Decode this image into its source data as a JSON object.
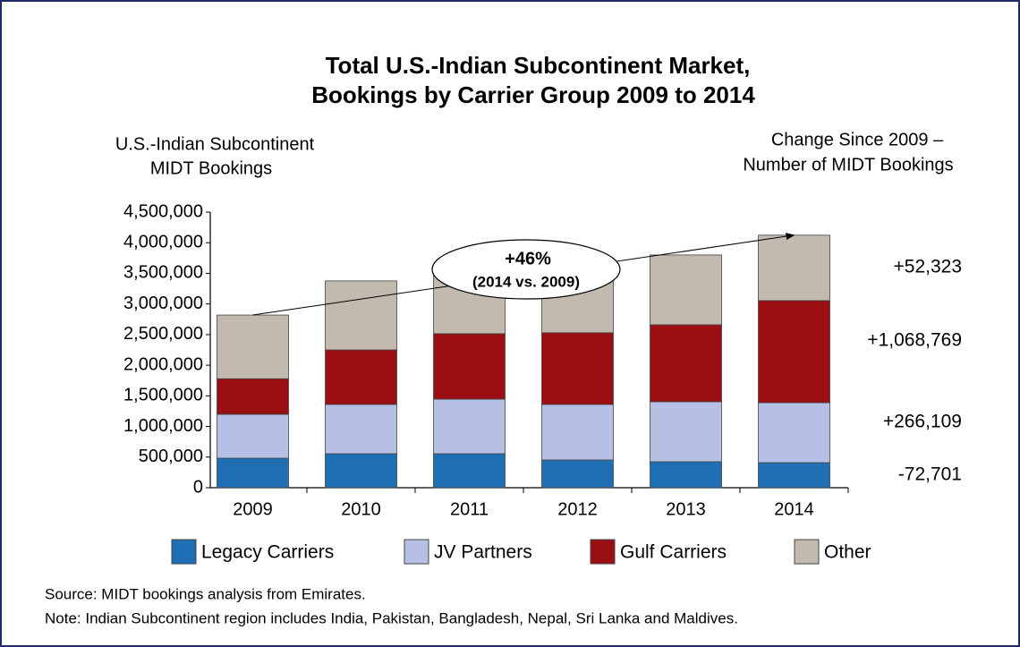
{
  "chart_data": {
    "type": "stacked_bar",
    "title": [
      "Total U.S.-Indian Subcontinent Market,",
      "Bookings by Carrier Group 2009 to 2014"
    ],
    "y_label": [
      "U.S.-Indian Subcontinent",
      "MIDT Bookings"
    ],
    "right_label": [
      "Change Since 2009 –",
      "Number of MIDT Bookings"
    ],
    "change_labels": [
      "+52,323",
      "+1,068,769",
      "+266,109",
      "-72,701"
    ],
    "callout": [
      "+46%",
      "(2014 vs. 2009)"
    ],
    "categories": [
      "2009",
      "2010",
      "2011",
      "2012",
      "2013",
      "2014"
    ],
    "series": [
      {
        "name": "Legacy Carriers",
        "color": "#1f6fb5",
        "values": [
          482000,
          555000,
          555000,
          453000,
          424000,
          409000
        ]
      },
      {
        "name": "JV Partners",
        "color": "#b5c0e4",
        "values": [
          717000,
          805000,
          892000,
          907000,
          980000,
          980000
        ]
      },
      {
        "name": "Gulf Carriers",
        "color": "#9b0e12",
        "values": [
          580000,
          890000,
          1068000,
          1170000,
          1256000,
          1666000
        ]
      },
      {
        "name": "Other",
        "color": "#c2b9af",
        "values": [
          1040000,
          1127000,
          1035000,
          1120000,
          1140000,
          1068000
        ]
      }
    ],
    "ylim": [
      0,
      4500000
    ],
    "yticks": [
      0,
      {
        "value": 500000,
        "label": "500,000"
      },
      {
        "value": 1000000,
        "label": "1,000,000"
      },
      {
        "value": 1500000,
        "label": "1,500,000"
      },
      {
        "value": 2000000,
        "label": "2,000,000"
      },
      {
        "value": 2500000,
        "label": "2,500,000"
      },
      {
        "value": 3000000,
        "label": "3,000,000"
      },
      {
        "value": 3500000,
        "label": "3,500,000"
      },
      {
        "value": 4000000,
        "label": "4,000,000"
      },
      {
        "value": 4500000,
        "label": "4,500,000"
      }
    ],
    "notes": [
      "Source: MIDT bookings analysis from Emirates.",
      "Note: Indian Subcontinent region includes India, Pakistan, Bangladesh, Nepal, Sri Lanka and Maldives."
    ]
  }
}
